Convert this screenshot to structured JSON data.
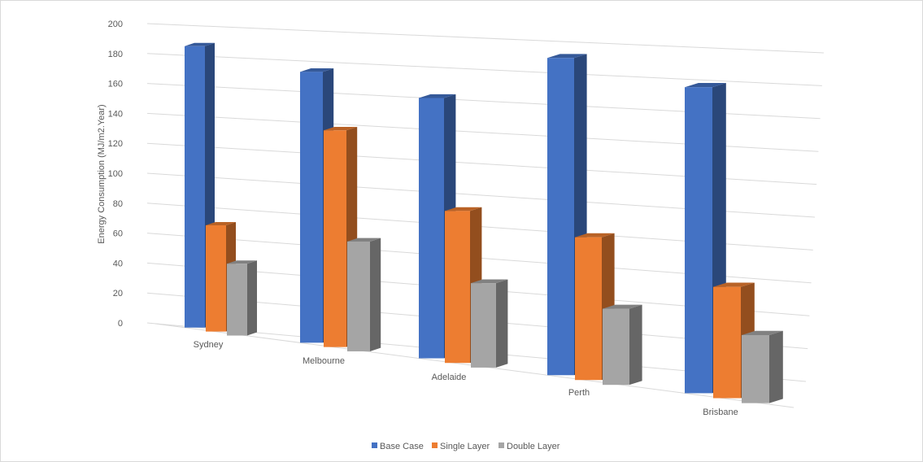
{
  "chart_data": {
    "type": "bar",
    "title": "",
    "xlabel": "",
    "ylabel": "Energy Consumption (MJ/m2.Year)",
    "ylim": [
      0,
      200
    ],
    "yticks": [
      "0",
      "20",
      "40",
      "60",
      "80",
      "100",
      "120",
      "140",
      "160",
      "180",
      "200"
    ],
    "grid": true,
    "legend_position": "bottom",
    "categories": [
      "Sydney",
      "Melbourne",
      "Adelaide",
      "Perth",
      "Brisbane"
    ],
    "series": [
      {
        "name": "Base Case",
        "color": "#4472c4",
        "values": [
          188,
          185,
          185,
          200,
          198
        ]
      },
      {
        "name": "Single Layer",
        "color": "#ed7d31",
        "values": [
          71,
          148,
          108,
          90,
          72
        ]
      },
      {
        "name": "Double Layer",
        "color": "#a5a5a5",
        "values": [
          48,
          75,
          60,
          48,
          44
        ]
      }
    ]
  }
}
